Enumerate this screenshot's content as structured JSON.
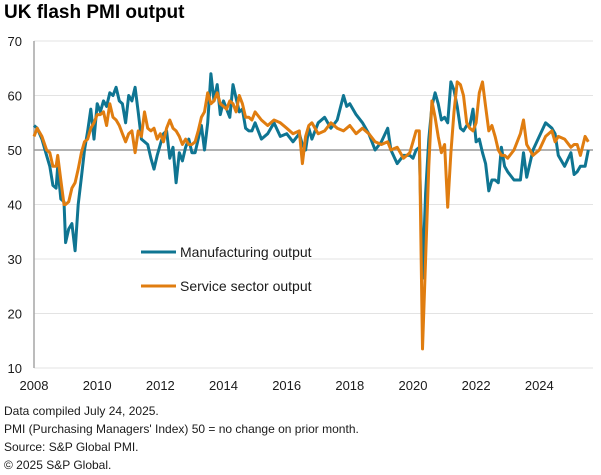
{
  "chart_data": {
    "type": "line",
    "title": "UK flash PMI output",
    "xlabel": "",
    "ylabel": "",
    "ylim": [
      10,
      70
    ],
    "xlim": [
      2008,
      2025.7
    ],
    "yticks": [
      10,
      20,
      30,
      40,
      50,
      60,
      70
    ],
    "xticks": [
      "2008",
      "2010",
      "2012",
      "2014",
      "2016",
      "2018",
      "2020",
      "2022",
      "2024"
    ],
    "reference_line": 50,
    "grid": true,
    "legend": [
      {
        "label": "Manufacturing output",
        "color": "#0f7592"
      },
      {
        "label": "Service sector output",
        "color": "#e07d10"
      }
    ],
    "legend_position": "center-left",
    "series": [
      {
        "name": "Manufacturing output",
        "color": "#0f7592",
        "x": [
          2008.0,
          2008.1,
          2008.25,
          2008.4,
          2008.5,
          2008.6,
          2008.7,
          2008.75,
          2008.85,
          2008.95,
          2009.0,
          2009.1,
          2009.2,
          2009.3,
          2009.4,
          2009.5,
          2009.6,
          2009.7,
          2009.8,
          2009.9,
          2010.0,
          2010.1,
          2010.2,
          2010.3,
          2010.4,
          2010.5,
          2010.6,
          2010.7,
          2010.8,
          2010.9,
          2011.0,
          2011.1,
          2011.2,
          2011.3,
          2011.4,
          2011.5,
          2011.6,
          2011.7,
          2011.8,
          2011.9,
          2012.0,
          2012.1,
          2012.2,
          2012.3,
          2012.4,
          2012.5,
          2012.6,
          2012.7,
          2012.8,
          2012.9,
          2013.0,
          2013.1,
          2013.2,
          2013.3,
          2013.4,
          2013.5,
          2013.6,
          2013.7,
          2013.8,
          2013.9,
          2014.0,
          2014.1,
          2014.2,
          2014.3,
          2014.4,
          2014.5,
          2014.6,
          2014.7,
          2014.8,
          2014.9,
          2015.0,
          2015.2,
          2015.4,
          2015.6,
          2015.8,
          2016.0,
          2016.2,
          2016.4,
          2016.5,
          2016.6,
          2016.7,
          2016.8,
          2017.0,
          2017.2,
          2017.4,
          2017.6,
          2017.8,
          2017.9,
          2018.0,
          2018.2,
          2018.4,
          2018.6,
          2018.8,
          2019.0,
          2019.2,
          2019.3,
          2019.5,
          2019.7,
          2019.9,
          2020.0,
          2020.1,
          2020.2,
          2020.3,
          2020.4,
          2020.5,
          2020.6,
          2020.7,
          2020.8,
          2020.9,
          2021.0,
          2021.1,
          2021.2,
          2021.3,
          2021.4,
          2021.5,
          2021.6,
          2021.7,
          2021.8,
          2021.9,
          2022.0,
          2022.1,
          2022.2,
          2022.3,
          2022.4,
          2022.5,
          2022.6,
          2022.7,
          2022.8,
          2022.9,
          2023.0,
          2023.2,
          2023.4,
          2023.5,
          2023.6,
          2023.8,
          2024.0,
          2024.2,
          2024.4,
          2024.5,
          2024.6,
          2024.8,
          2025.0,
          2025.1,
          2025.2,
          2025.3,
          2025.45,
          2025.55
        ],
        "values": [
          54.5,
          54.0,
          52.0,
          49.0,
          47.0,
          43.5,
          43.0,
          47.0,
          41.0,
          40.5,
          33.0,
          35.5,
          36.5,
          31.5,
          40.0,
          45.0,
          50.0,
          53.5,
          57.5,
          52.0,
          58.5,
          57.0,
          59.0,
          58.0,
          60.5,
          60.0,
          61.5,
          59.0,
          58.5,
          55.0,
          60.0,
          59.0,
          61.5,
          57.0,
          52.0,
          51.5,
          51.0,
          48.5,
          46.5,
          49.0,
          51.0,
          53.0,
          53.5,
          48.5,
          50.5,
          44.0,
          49.5,
          48.0,
          50.5,
          52.0,
          49.5,
          49.5,
          52.0,
          54.5,
          50.0,
          55.0,
          64.0,
          59.0,
          62.0,
          56.5,
          59.0,
          57.5,
          56.0,
          62.0,
          59.5,
          57.0,
          57.5,
          54.0,
          53.5,
          53.5,
          55.0,
          52.0,
          53.0,
          55.0,
          52.5,
          53.0,
          51.5,
          53.0,
          51.0,
          50.0,
          54.0,
          52.0,
          55.0,
          56.0,
          54.0,
          55.5,
          60.0,
          58.0,
          58.5,
          56.5,
          55.0,
          53.0,
          50.0,
          51.5,
          54.0,
          50.0,
          47.5,
          49.0,
          49.0,
          48.5,
          50.0,
          50.5,
          26.5,
          42.0,
          52.0,
          58.0,
          60.5,
          58.5,
          55.5,
          56.0,
          55.0,
          62.5,
          61.0,
          58.0,
          54.0,
          53.5,
          54.5,
          54.5,
          57.5,
          51.5,
          52.0,
          49.5,
          47.5,
          42.5,
          44.5,
          44.5,
          44.0,
          50.5,
          47.0,
          46.0,
          44.5,
          44.5,
          49.5,
          45.0,
          50.0,
          52.5,
          55.0,
          54.0,
          53.0,
          49.0,
          47.0,
          49.5,
          45.5,
          46.0,
          47.0,
          47.0,
          50.0
        ]
      },
      {
        "name": "Service sector output",
        "color": "#e07d10",
        "x": [
          2008.0,
          2008.1,
          2008.25,
          2008.4,
          2008.5,
          2008.6,
          2008.7,
          2008.75,
          2008.85,
          2008.95,
          2009.0,
          2009.1,
          2009.2,
          2009.3,
          2009.4,
          2009.5,
          2009.6,
          2009.7,
          2009.8,
          2009.9,
          2010.0,
          2010.1,
          2010.2,
          2010.3,
          2010.4,
          2010.5,
          2010.6,
          2010.7,
          2010.8,
          2010.9,
          2011.0,
          2011.1,
          2011.2,
          2011.3,
          2011.4,
          2011.5,
          2011.6,
          2011.7,
          2011.8,
          2011.9,
          2012.0,
          2012.1,
          2012.2,
          2012.3,
          2012.4,
          2012.5,
          2012.6,
          2012.7,
          2012.8,
          2012.9,
          2013.0,
          2013.1,
          2013.2,
          2013.3,
          2013.4,
          2013.5,
          2013.6,
          2013.7,
          2013.8,
          2013.9,
          2014.0,
          2014.1,
          2014.2,
          2014.3,
          2014.4,
          2014.5,
          2014.6,
          2014.7,
          2014.8,
          2014.9,
          2015.0,
          2015.2,
          2015.4,
          2015.6,
          2015.8,
          2016.0,
          2016.2,
          2016.4,
          2016.5,
          2016.6,
          2016.7,
          2016.8,
          2017.0,
          2017.2,
          2017.4,
          2017.6,
          2017.8,
          2017.9,
          2018.0,
          2018.2,
          2018.4,
          2018.6,
          2018.8,
          2019.0,
          2019.2,
          2019.3,
          2019.5,
          2019.7,
          2019.9,
          2020.0,
          2020.1,
          2020.2,
          2020.3,
          2020.4,
          2020.5,
          2020.6,
          2020.7,
          2020.8,
          2020.9,
          2021.0,
          2021.1,
          2021.2,
          2021.3,
          2021.4,
          2021.5,
          2021.6,
          2021.7,
          2021.8,
          2021.9,
          2022.0,
          2022.1,
          2022.2,
          2022.3,
          2022.4,
          2022.5,
          2022.6,
          2022.7,
          2022.8,
          2022.9,
          2023.0,
          2023.2,
          2023.4,
          2023.5,
          2023.6,
          2023.8,
          2024.0,
          2024.2,
          2024.4,
          2024.5,
          2024.6,
          2024.8,
          2025.0,
          2025.1,
          2025.2,
          2025.3,
          2025.45,
          2025.55
        ],
        "values": [
          52.5,
          54.0,
          52.5,
          50.0,
          49.5,
          47.0,
          47.0,
          49.0,
          44.5,
          40.0,
          40.0,
          40.5,
          43.0,
          44.0,
          46.5,
          49.5,
          51.5,
          52.0,
          54.0,
          55.0,
          56.5,
          56.5,
          57.0,
          54.5,
          58.5,
          56.0,
          55.5,
          54.5,
          53.0,
          51.5,
          53.0,
          53.5,
          49.5,
          53.5,
          52.5,
          57.0,
          54.0,
          53.5,
          54.0,
          52.0,
          53.0,
          51.5,
          54.0,
          55.5,
          54.0,
          53.5,
          52.5,
          51.0,
          52.0,
          51.0,
          51.0,
          51.5,
          53.5,
          56.0,
          57.0,
          60.5,
          58.5,
          59.0,
          60.5,
          58.5,
          58.0,
          57.5,
          59.0,
          58.5,
          57.0,
          60.0,
          58.5,
          56.0,
          56.0,
          55.5,
          57.0,
          55.5,
          54.5,
          55.5,
          55.0,
          54.0,
          53.0,
          53.5,
          47.5,
          52.5,
          54.5,
          55.0,
          53.0,
          53.5,
          55.0,
          54.0,
          53.5,
          54.0,
          54.5,
          53.0,
          54.0,
          53.0,
          51.5,
          51.0,
          51.5,
          50.0,
          50.5,
          48.5,
          49.5,
          51.5,
          53.5,
          53.5,
          13.5,
          30.0,
          47.0,
          59.0,
          56.0,
          52.5,
          49.5,
          51.0,
          39.5,
          49.5,
          57.0,
          62.5,
          62.0,
          60.0,
          55.0,
          54.0,
          53.5,
          55.0,
          60.5,
          62.5,
          58.0,
          53.5,
          54.5,
          52.5,
          50.0,
          49.0,
          49.0,
          48.5,
          50.0,
          53.0,
          55.5,
          51.0,
          49.0,
          50.0,
          52.5,
          53.5,
          51.5,
          52.5,
          52.0,
          50.5,
          51.0,
          51.0,
          49.0,
          52.5,
          51.5
        ]
      }
    ]
  },
  "notes": [
    "Data compiled July 24, 2025.",
    "PMI (Purchasing Managers' Index) 50 = no change on prior month.",
    "Source: S&P Global PMI.",
    "© 2025 S&P Global."
  ]
}
